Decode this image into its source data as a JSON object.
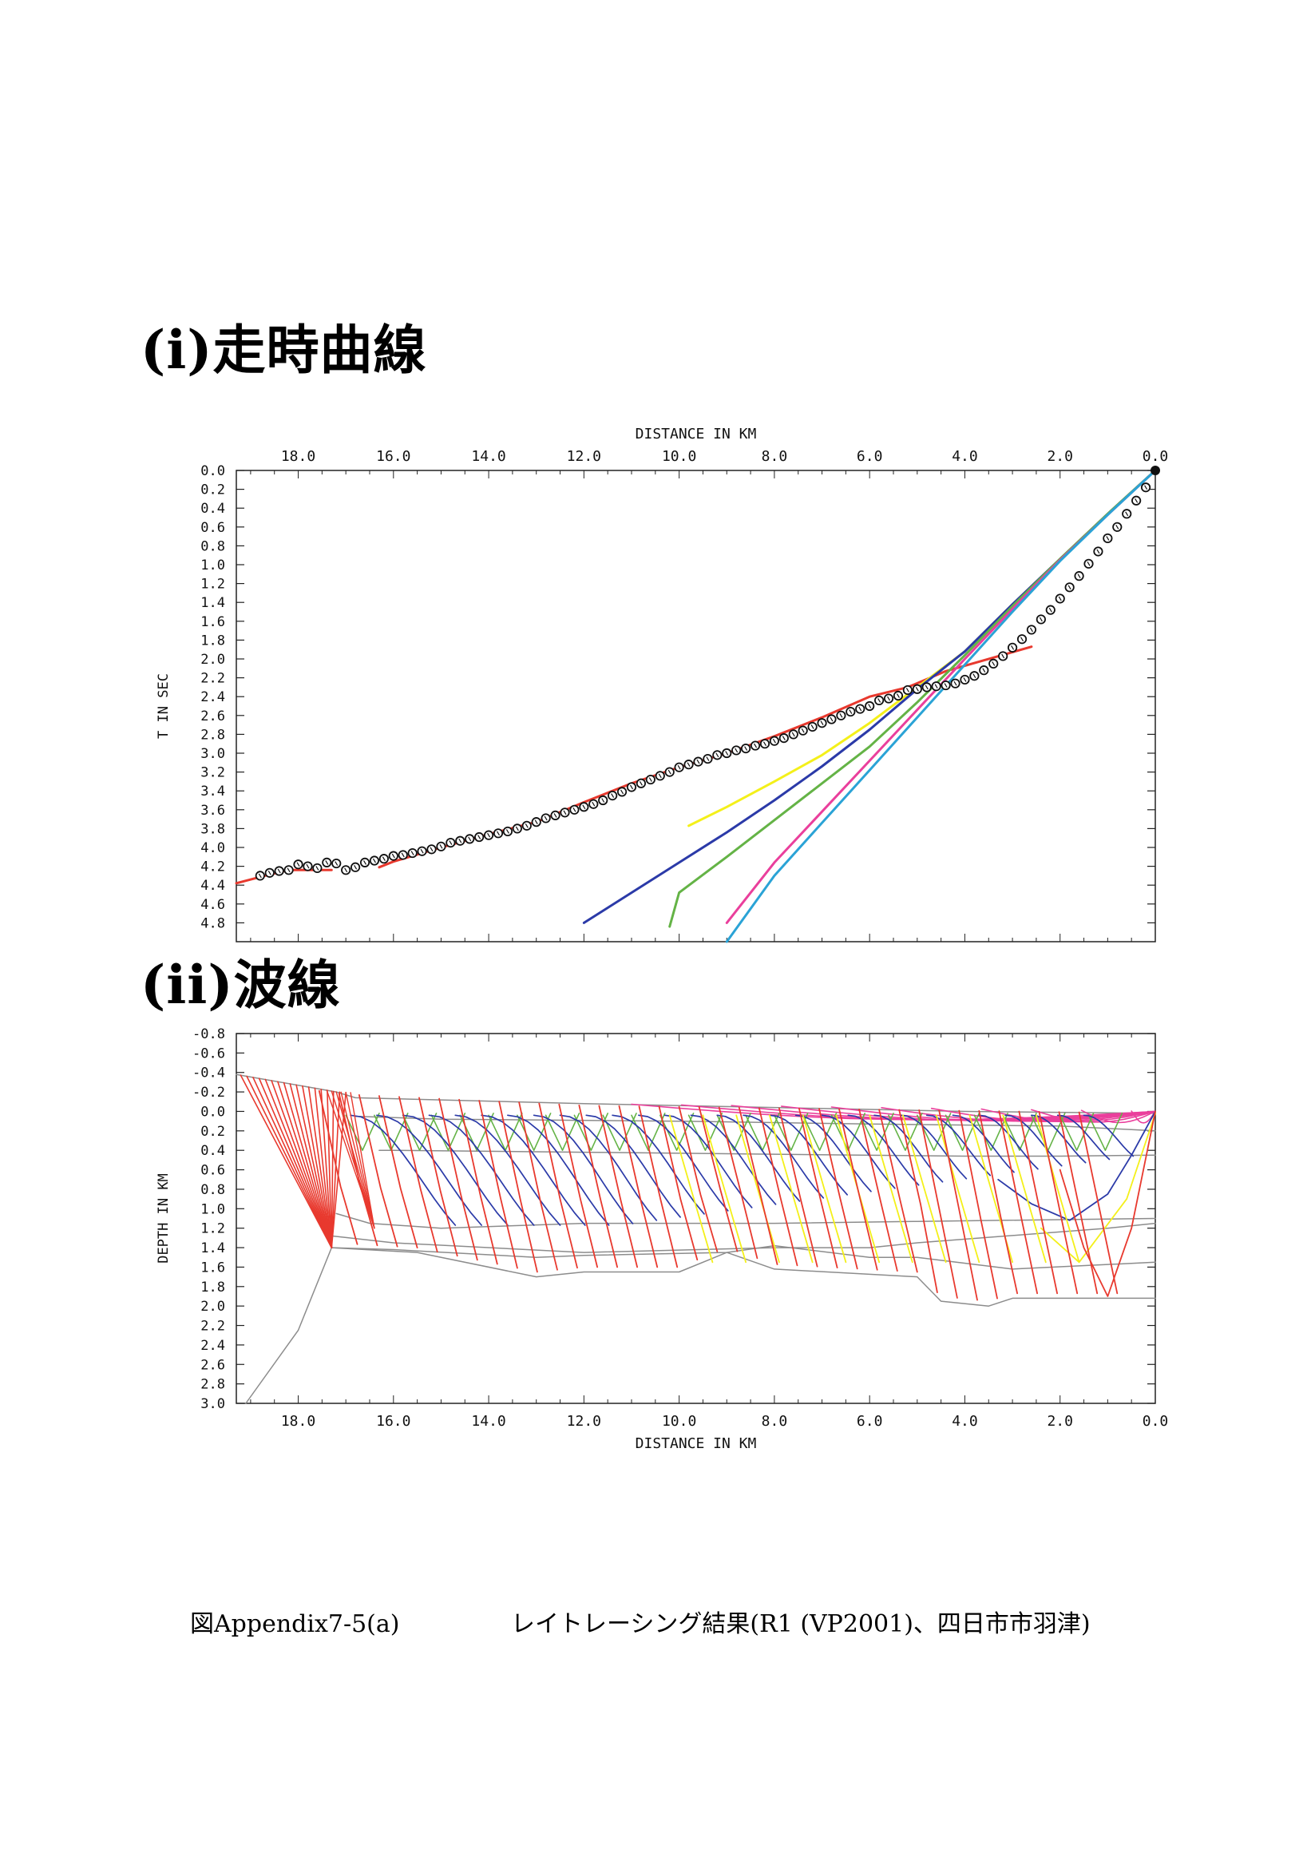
{
  "headings": {
    "traveltime": "(i)走時曲線",
    "rays": "(ii)波線"
  },
  "caption": {
    "figure": "図Appendix7-5(a)",
    "text": "レイトレーシング結果(R1 (VP2001)、四日市市羽津)"
  },
  "colors": {
    "red": "#e8392e",
    "blue": "#2b3aa8",
    "yellow": "#f4f01a",
    "green": "#64b346",
    "magenta": "#ea3f9c",
    "cyan": "#2aa3d6",
    "gray": "#8c8c8c",
    "frame": "#222222",
    "grid": "#d6d6d6"
  },
  "chart_data": [
    {
      "type": "line",
      "xlabel": "DISTANCE IN KM",
      "ylabel": "T IN SEC",
      "xlim": [
        19.3,
        0.0
      ],
      "ylim": [
        0.0,
        5.0
      ],
      "x_ticks": [
        "18.0",
        "16.0",
        "14.0",
        "12.0",
        "10.0",
        "8.0",
        "6.0",
        "4.0",
        "2.0",
        "0.0"
      ],
      "y_ticks": [
        "0.0",
        "0.2",
        "0.4",
        "0.6",
        "0.8",
        "1.0",
        "1.2",
        "1.4",
        "1.6",
        "1.8",
        "2.0",
        "2.2",
        "2.4",
        "2.6",
        "2.8",
        "3.0",
        "3.2",
        "3.4",
        "3.6",
        "3.8",
        "4.0",
        "4.2",
        "4.4",
        "4.6",
        "4.8"
      ],
      "observed": {
        "x": [
          0.2,
          0.4,
          0.6,
          0.8,
          1.0,
          1.2,
          1.4,
          1.6,
          1.8,
          2.0,
          2.2,
          2.4,
          2.6,
          2.8,
          3.0,
          3.2,
          3.4,
          3.6,
          3.8,
          4.0,
          4.2,
          4.4,
          4.6,
          4.8,
          5.0,
          5.2,
          5.4,
          5.6,
          5.8,
          6.0,
          6.2,
          6.4,
          6.6,
          6.8,
          7.0,
          7.2,
          7.4,
          7.6,
          7.8,
          8.0,
          8.2,
          8.4,
          8.6,
          8.8,
          9.0,
          9.2,
          9.4,
          9.6,
          9.8,
          10.0,
          10.2,
          10.4,
          10.6,
          10.8,
          11.0,
          11.2,
          11.4,
          11.6,
          11.8,
          12.0,
          12.2,
          12.4,
          12.6,
          12.8,
          13.0,
          13.2,
          13.4,
          13.6,
          13.8,
          14.0,
          14.2,
          14.4,
          14.6,
          14.8,
          15.0,
          15.2,
          15.4,
          15.6,
          15.8,
          16.0,
          16.2,
          16.4,
          16.6,
          16.8,
          17.0,
          17.2,
          17.4,
          17.6,
          17.8,
          18.0,
          18.2,
          18.4,
          18.6,
          18.8
        ],
        "y": [
          0.18,
          0.32,
          0.46,
          0.6,
          0.72,
          0.86,
          0.99,
          1.12,
          1.24,
          1.36,
          1.48,
          1.58,
          1.69,
          1.79,
          1.88,
          1.97,
          2.05,
          2.12,
          2.18,
          2.22,
          2.26,
          2.28,
          2.29,
          2.3,
          2.32,
          2.33,
          2.39,
          2.42,
          2.44,
          2.5,
          2.53,
          2.56,
          2.6,
          2.64,
          2.68,
          2.72,
          2.76,
          2.8,
          2.84,
          2.87,
          2.9,
          2.92,
          2.95,
          2.97,
          3.0,
          3.02,
          3.06,
          3.09,
          3.12,
          3.15,
          3.2,
          3.24,
          3.28,
          3.32,
          3.36,
          3.41,
          3.45,
          3.5,
          3.54,
          3.57,
          3.6,
          3.63,
          3.66,
          3.69,
          3.73,
          3.77,
          3.8,
          3.83,
          3.85,
          3.87,
          3.89,
          3.91,
          3.93,
          3.95,
          3.99,
          4.02,
          4.04,
          4.06,
          4.08,
          4.09,
          4.12,
          4.14,
          4.16,
          4.21,
          4.24,
          4.17,
          4.16,
          4.22,
          4.2,
          4.18,
          4.24,
          4.25,
          4.27,
          4.3
        ]
      },
      "source": {
        "x": 0.0,
        "y": 0.0
      },
      "series": [
        {
          "color": "red",
          "x": [
            2.6,
            4.4,
            5.2,
            6.0,
            7.0,
            8.0,
            9.0,
            10.0,
            11.0,
            12.0,
            13.0,
            14.0,
            15.0,
            16.0,
            16.3
          ],
          "y": [
            1.87,
            2.13,
            2.3,
            2.4,
            2.62,
            2.82,
            3.0,
            3.15,
            3.32,
            3.52,
            3.73,
            3.86,
            4.0,
            4.15,
            4.21
          ]
        },
        {
          "color": "red",
          "x": [
            17.3,
            17.7,
            18.2,
            18.7,
            19.3
          ],
          "y": [
            4.24,
            4.24,
            4.24,
            4.3,
            4.38
          ]
        },
        {
          "color": "yellow",
          "x": [
            0.0,
            1.0,
            2.0,
            3.0,
            4.0,
            5.0,
            6.0,
            7.0,
            8.0,
            9.0,
            9.8
          ],
          "y": [
            0.0,
            0.46,
            0.94,
            1.42,
            1.92,
            2.3,
            2.68,
            3.02,
            3.3,
            3.57,
            3.77
          ]
        },
        {
          "color": "blue",
          "x": [
            0.0,
            1.0,
            2.0,
            3.0,
            4.0,
            5.0,
            6.0,
            7.0,
            8.0,
            9.0,
            10.0,
            11.0,
            12.0
          ],
          "y": [
            0.0,
            0.46,
            0.94,
            1.42,
            1.92,
            2.32,
            2.75,
            3.14,
            3.5,
            3.84,
            4.16,
            4.48,
            4.8
          ]
        },
        {
          "color": "green",
          "x": [
            0.0,
            1.0,
            2.0,
            3.0,
            4.0,
            5.0,
            6.0,
            7.0,
            8.0,
            9.0,
            10.0,
            10.2
          ],
          "y": [
            0.0,
            0.46,
            0.94,
            1.44,
            1.96,
            2.46,
            2.93,
            3.32,
            3.71,
            4.1,
            4.48,
            4.84
          ]
        },
        {
          "color": "magenta",
          "x": [
            0.0,
            1.0,
            2.0,
            3.0,
            4.0,
            5.0,
            6.0,
            7.0,
            8.0,
            9.0
          ],
          "y": [
            0.0,
            0.47,
            0.95,
            1.47,
            2.0,
            2.54,
            3.08,
            3.62,
            4.16,
            4.8
          ]
        },
        {
          "color": "cyan",
          "x": [
            0.0,
            1.0,
            2.0,
            3.0,
            4.0,
            5.0,
            6.0,
            7.0,
            8.0,
            9.0
          ],
          "y": [
            0.0,
            0.47,
            0.96,
            1.5,
            2.06,
            2.62,
            3.18,
            3.74,
            4.3,
            5.0
          ]
        }
      ]
    },
    {
      "type": "line",
      "xlabel": "DISTANCE IN KM",
      "ylabel": "DEPTH IN KM",
      "xlim": [
        19.3,
        0.0
      ],
      "ylim": [
        -0.8,
        3.0
      ],
      "x_ticks": [
        "18.0",
        "16.0",
        "14.0",
        "12.0",
        "10.0",
        "8.0",
        "6.0",
        "4.0",
        "2.0",
        "0.0"
      ],
      "y_ticks": [
        "-0.8",
        "-0.6",
        "-0.4",
        "-0.2",
        "0.0",
        "0.2",
        "0.4",
        "0.6",
        "0.8",
        "1.0",
        "1.2",
        "1.4",
        "1.6",
        "1.8",
        "2.0",
        "2.2",
        "2.4",
        "2.6",
        "2.8",
        "3.0"
      ],
      "layers": [
        {
          "x": [
            19.3,
            17.2,
            16.8,
            12.0,
            8.0,
            4.0,
            0.0
          ],
          "y": [
            -0.38,
            -0.2,
            -0.14,
            -0.08,
            -0.04,
            0.0,
            0.02
          ]
        },
        {
          "x": [
            16.8,
            15.0,
            10.0,
            6.0,
            2.0,
            0.0
          ],
          "y": [
            0.05,
            0.08,
            0.1,
            0.13,
            0.15,
            0.2
          ]
        },
        {
          "x": [
            16.3,
            16.0,
            12.0,
            8.0,
            4.0,
            2.0,
            0.0
          ],
          "y": [
            0.4,
            0.4,
            0.42,
            0.44,
            0.46,
            0.46,
            0.45
          ]
        },
        {
          "x": [
            17.2,
            16.5,
            15.0,
            12.0,
            8.0,
            5.0,
            0.0
          ],
          "y": [
            1.05,
            1.15,
            1.2,
            1.15,
            1.15,
            1.13,
            1.1
          ]
        },
        {
          "x": [
            17.3,
            16.0,
            12.0,
            8.0,
            6.0,
            5.0,
            1.0,
            0.0
          ],
          "y": [
            1.28,
            1.35,
            1.45,
            1.4,
            1.4,
            1.35,
            1.2,
            1.15
          ]
        },
        {
          "x": [
            17.3,
            16.0,
            13.0,
            12.0,
            9.0,
            8.0,
            6.0,
            5.0,
            3.0,
            0.0
          ],
          "y": [
            1.4,
            1.42,
            1.5,
            1.48,
            1.45,
            1.38,
            1.5,
            1.5,
            1.62,
            1.55
          ]
        },
        {
          "x": [
            17.3,
            15.5,
            13.0,
            12.0,
            10.0,
            9.0,
            8.0,
            5.0,
            4.5,
            3.5,
            3.0,
            2.0,
            0.0
          ],
          "y": [
            1.4,
            1.45,
            1.7,
            1.65,
            1.65,
            1.45,
            1.62,
            1.7,
            1.95,
            2.0,
            1.92,
            1.92,
            1.92
          ]
        },
        {
          "x": [
            17.3,
            18.0,
            19.1
          ],
          "y": [
            1.4,
            2.25,
            3.0
          ]
        }
      ]
    }
  ]
}
